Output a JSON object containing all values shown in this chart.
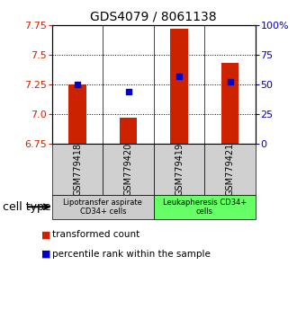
{
  "title": "GDS4079 / 8061138",
  "samples": [
    "GSM779418",
    "GSM779420",
    "GSM779419",
    "GSM779421"
  ],
  "transformed_counts": [
    7.25,
    6.97,
    7.72,
    7.43
  ],
  "percentile_ranks": [
    7.25,
    7.19,
    7.32,
    7.27
  ],
  "y_min": 6.75,
  "y_max": 7.75,
  "y_ticks_left": [
    6.75,
    7.0,
    7.25,
    7.5,
    7.75
  ],
  "y_ticks_right": [
    0,
    25,
    50,
    75,
    100
  ],
  "y_ticks_right_labels": [
    "0",
    "25",
    "50",
    "75",
    "100%"
  ],
  "bar_color": "#cc2200",
  "dot_color": "#0000cc",
  "bar_bottom": 6.75,
  "cell_groups": [
    {
      "label": "Lipotransfer aspirate\nCD34+ cells",
      "color": "#cccccc"
    },
    {
      "label": "Leukapheresis CD34+\ncells",
      "color": "#66ff66"
    }
  ],
  "cell_type_label": "cell type",
  "legend_red_label": "transformed count",
  "legend_blue_label": "percentile rank within the sample",
  "background_color": "#ffffff"
}
